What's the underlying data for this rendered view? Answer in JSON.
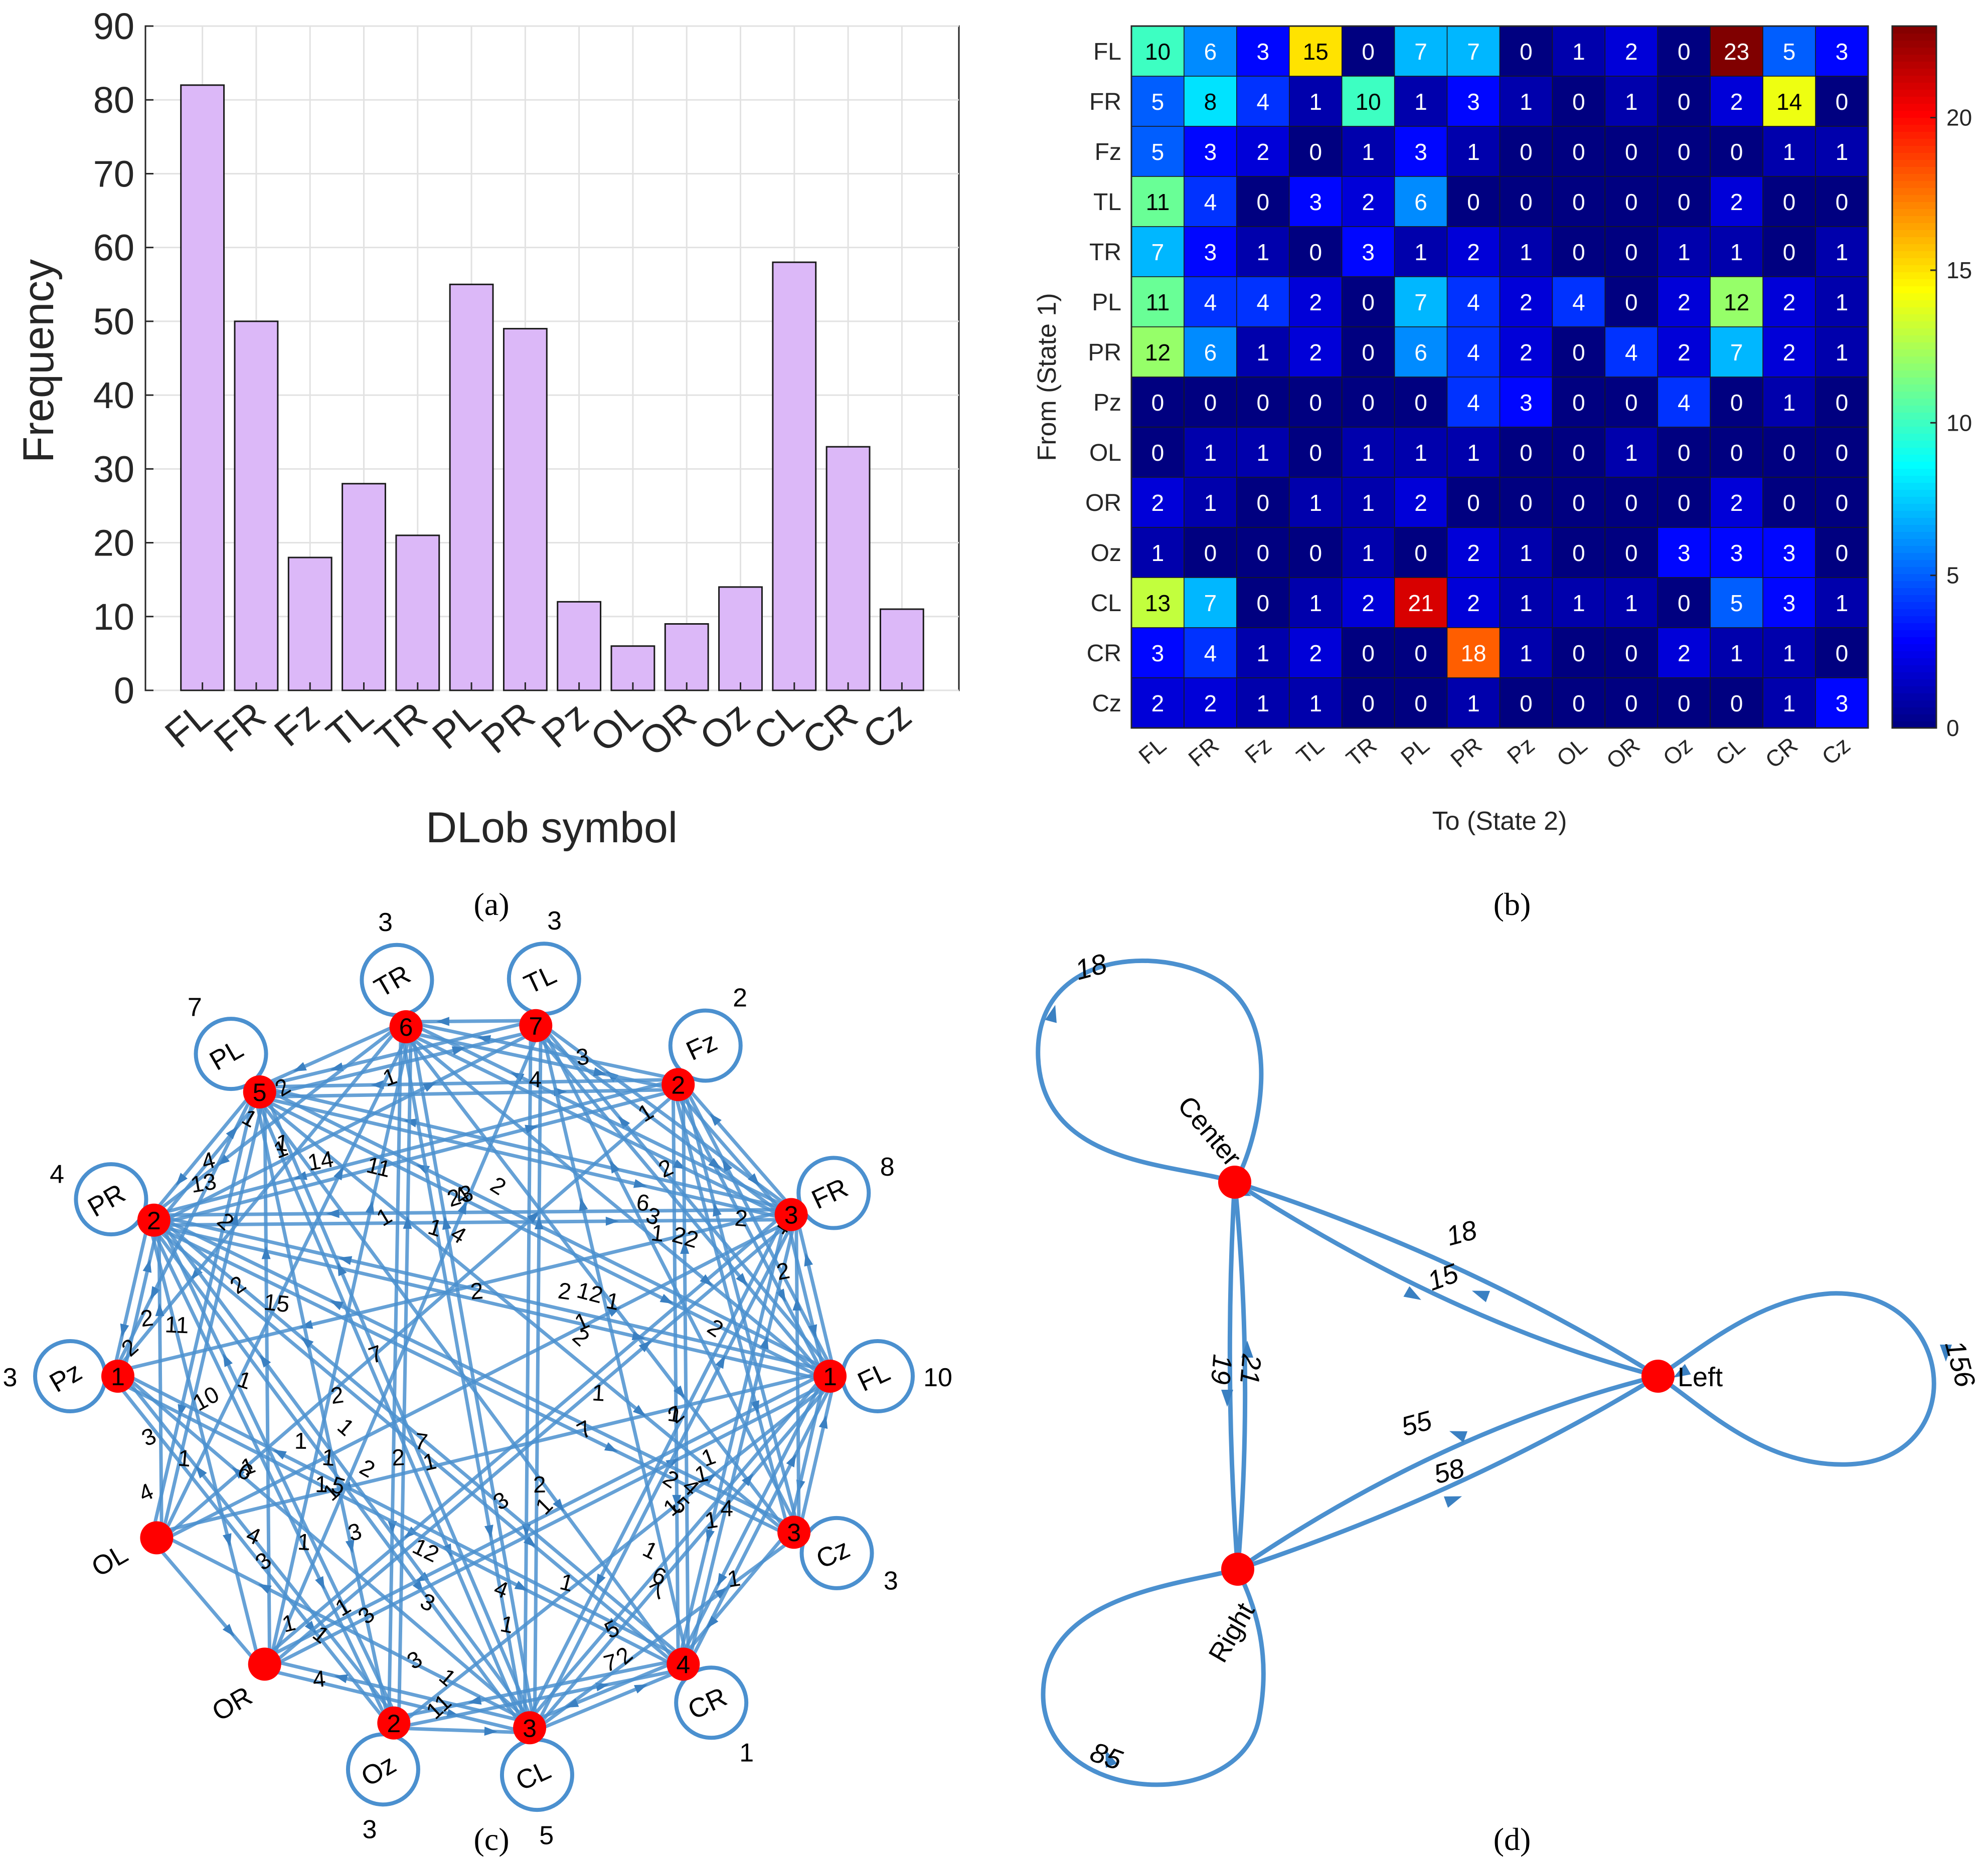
{
  "chart_data": [
    {
      "panel": "a",
      "type": "bar",
      "caption": "(a)",
      "xlabel": "DLob symbol",
      "ylabel": "Frequency",
      "ylim": [
        0,
        90
      ],
      "yticks": [
        0,
        10,
        20,
        30,
        40,
        50,
        60,
        70,
        80,
        90
      ],
      "grid": true,
      "bar_color": "#dcb8f8",
      "categories": [
        "FL",
        "FR",
        "Fz",
        "TL",
        "TR",
        "PL",
        "PR",
        "Pz",
        "OL",
        "OR",
        "Oz",
        "CL",
        "CR",
        "Cz"
      ],
      "values": [
        82,
        50,
        18,
        28,
        21,
        55,
        49,
        12,
        6,
        9,
        14,
        58,
        33,
        11
      ]
    },
    {
      "panel": "b",
      "type": "heatmap",
      "caption": "(b)",
      "xlabel": "To (State 2)",
      "ylabel": "From (State 1)",
      "colormap": "jet",
      "clim": [
        0,
        23
      ],
      "colorbar_ticks": [
        0,
        5,
        10,
        15,
        20
      ],
      "rows": [
        "FL",
        "FR",
        "Fz",
        "TL",
        "TR",
        "PL",
        "PR",
        "Pz",
        "OL",
        "OR",
        "Oz",
        "CL",
        "CR",
        "Cz"
      ],
      "cols": [
        "FL",
        "FR",
        "Fz",
        "TL",
        "TR",
        "PL",
        "PR",
        "Pz",
        "OL",
        "OR",
        "Oz",
        "CL",
        "CR",
        "Cz"
      ],
      "matrix": [
        [
          10,
          6,
          3,
          15,
          0,
          7,
          7,
          0,
          1,
          2,
          0,
          23,
          5,
          3
        ],
        [
          5,
          8,
          4,
          1,
          10,
          1,
          3,
          1,
          0,
          1,
          0,
          2,
          14,
          0
        ],
        [
          5,
          3,
          2,
          0,
          1,
          3,
          1,
          0,
          0,
          0,
          0,
          0,
          1,
          1
        ],
        [
          11,
          4,
          0,
          3,
          2,
          6,
          0,
          0,
          0,
          0,
          0,
          2,
          0,
          0
        ],
        [
          7,
          3,
          1,
          0,
          3,
          1,
          2,
          1,
          0,
          0,
          1,
          1,
          0,
          1
        ],
        [
          11,
          4,
          4,
          2,
          0,
          7,
          4,
          2,
          4,
          0,
          2,
          12,
          2,
          1
        ],
        [
          12,
          6,
          1,
          2,
          0,
          6,
          4,
          2,
          0,
          4,
          2,
          7,
          2,
          1
        ],
        [
          0,
          0,
          0,
          0,
          0,
          0,
          4,
          3,
          0,
          0,
          4,
          0,
          1,
          0
        ],
        [
          0,
          1,
          1,
          0,
          1,
          1,
          1,
          0,
          0,
          1,
          0,
          0,
          0,
          0
        ],
        [
          2,
          1,
          0,
          1,
          1,
          2,
          0,
          0,
          0,
          0,
          0,
          2,
          0,
          0
        ],
        [
          1,
          0,
          0,
          0,
          1,
          0,
          2,
          1,
          0,
          0,
          3,
          3,
          3,
          0
        ],
        [
          13,
          7,
          0,
          1,
          2,
          21,
          2,
          1,
          1,
          1,
          0,
          5,
          3,
          1
        ],
        [
          3,
          4,
          1,
          2,
          0,
          0,
          18,
          1,
          0,
          0,
          2,
          1,
          1,
          0
        ],
        [
          2,
          2,
          1,
          1,
          0,
          0,
          1,
          0,
          0,
          0,
          0,
          0,
          1,
          3
        ]
      ]
    },
    {
      "panel": "c",
      "type": "network",
      "caption": "(c)",
      "description_of_source": "directed transition graph of the 14 DLob symbols; edge weights equal panel (b) matrix",
      "nodes": [
        {
          "label": "FL",
          "index": 1
        },
        {
          "label": "FR",
          "index": 3
        },
        {
          "label": "Fz",
          "index": 2
        },
        {
          "label": "TL",
          "index": 7
        },
        {
          "label": "TR",
          "index": 6
        },
        {
          "label": "PL",
          "index": 5
        },
        {
          "label": "PR",
          "index": 2
        },
        {
          "label": "Pz",
          "index": 1
        },
        {
          "label": "OL",
          "index": null
        },
        {
          "label": "OR",
          "index": null
        },
        {
          "label": "Oz",
          "index": 2
        },
        {
          "label": "CL",
          "index": 3
        },
        {
          "label": "CR",
          "index": 4
        },
        {
          "label": "Cz",
          "index": 3
        }
      ],
      "self_loops": {
        "FL": "10",
        "FR": "8",
        "Fz": "2",
        "TL": "3",
        "TR": "3",
        "PL": "7",
        "PR": "4",
        "Pz": "3",
        "Oz": "3",
        "CL": "5",
        "CR": "1",
        "Cz": "3"
      },
      "edge_labels": [
        "2",
        "1",
        "2",
        "3",
        "4",
        "1",
        "10",
        "2",
        "1",
        "1",
        "3",
        "4",
        "1",
        "1",
        "1",
        "3",
        "4",
        "7",
        "1",
        "11",
        "4",
        "6",
        "1",
        "4",
        "2",
        "4",
        "1",
        "1",
        "5",
        "1",
        "7",
        "5",
        "6",
        "1",
        "11",
        "1",
        "2",
        "2",
        "1",
        "1",
        "1",
        "1",
        "12",
        "1",
        "1",
        "2",
        "2",
        "1",
        "1",
        "2",
        "7",
        "1",
        "1",
        "2",
        "12",
        "22",
        "2",
        "1",
        "2",
        "1",
        "4",
        "14",
        "4",
        "3",
        "2",
        "2",
        "5",
        "3",
        "2",
        "1",
        "23",
        "13",
        "7",
        "1",
        "2",
        "1",
        "2",
        "1",
        "1",
        "1",
        "4",
        "7",
        "4",
        "1",
        "2",
        "3",
        "3",
        "2",
        "3",
        "1",
        "1",
        "6",
        "4",
        "15",
        "2",
        "11",
        "3"
      ]
    },
    {
      "panel": "d",
      "type": "network",
      "caption": "(d)",
      "nodes": [
        "Center",
        "Left",
        "Right"
      ],
      "self_loops": [
        {
          "node": "Center",
          "weight": "18"
        },
        {
          "node": "Left",
          "weight": "156"
        },
        {
          "node": "Right",
          "weight": "85"
        }
      ],
      "edges": [
        {
          "from": "Center",
          "to": "Left",
          "weight": "15"
        },
        {
          "from": "Left",
          "to": "Center",
          "weight": "18"
        },
        {
          "from": "Center",
          "to": "Right",
          "weight": "19"
        },
        {
          "from": "Right",
          "to": "Center",
          "weight": "21"
        },
        {
          "from": "Left",
          "to": "Right",
          "weight": "55"
        },
        {
          "from": "Right",
          "to": "Left",
          "weight": "58"
        }
      ]
    }
  ]
}
